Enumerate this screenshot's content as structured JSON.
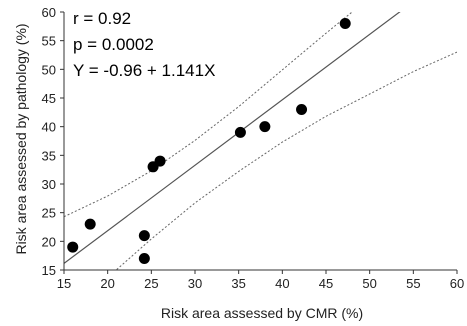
{
  "chart_data": {
    "type": "scatter",
    "title": "",
    "xlabel": "Risk area assessed by CMR (%)",
    "ylabel": "Risk area assessed by pathology (%)",
    "xlim": [
      15,
      60
    ],
    "ylim": [
      15,
      60
    ],
    "xticks": [
      15,
      20,
      25,
      30,
      35,
      40,
      45,
      50,
      55,
      60
    ],
    "yticks": [
      15,
      20,
      25,
      30,
      35,
      40,
      45,
      50,
      55,
      60
    ],
    "grid": false,
    "legend": "none",
    "points": [
      {
        "x": 16,
        "y": 19
      },
      {
        "x": 18,
        "y": 23
      },
      {
        "x": 24.2,
        "y": 21
      },
      {
        "x": 24.2,
        "y": 17
      },
      {
        "x": 25.2,
        "y": 33
      },
      {
        "x": 26,
        "y": 34
      },
      {
        "x": 35.2,
        "y": 39
      },
      {
        "x": 38,
        "y": 40
      },
      {
        "x": 42.2,
        "y": 43
      },
      {
        "x": 47.2,
        "y": 58
      }
    ],
    "regression": {
      "intercept": -0.96,
      "slope": 1.141
    },
    "confidence_band": {
      "upper": [
        [
          15,
          24.3
        ],
        [
          20,
          27.9
        ],
        [
          25,
          32.3
        ],
        [
          30,
          37.6
        ],
        [
          35,
          43.5
        ],
        [
          40,
          49.9
        ],
        [
          45,
          56.3
        ],
        [
          50,
          62.5
        ]
      ],
      "lower": [
        [
          20,
          13.7
        ],
        [
          25,
          20.4
        ],
        [
          30,
          26.7
        ],
        [
          35,
          32.2
        ],
        [
          40,
          37.3
        ],
        [
          45,
          41.8
        ],
        [
          50,
          45.7
        ],
        [
          55,
          49.6
        ],
        [
          60,
          53.0
        ]
      ]
    },
    "annotations": [
      "r = 0.92",
      "p = 0.0002",
      "Y = -0.96 + 1.141X"
    ],
    "colors": {
      "point": "#000000",
      "line": "#555555",
      "band": "#666666",
      "axis": "#333333"
    }
  }
}
